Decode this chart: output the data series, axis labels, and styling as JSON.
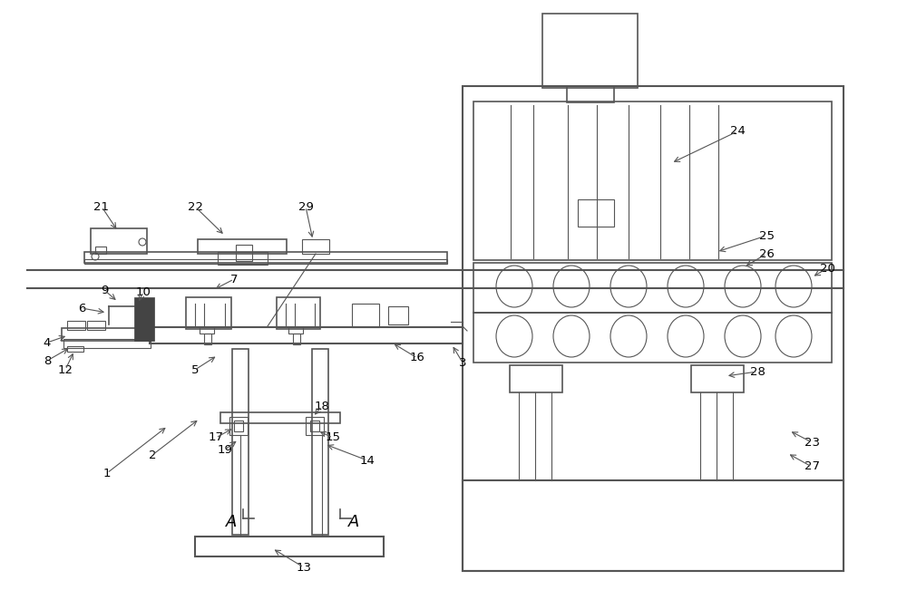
{
  "bg_color": "#ffffff",
  "lc": "#555555",
  "fig_width": 10.0,
  "fig_height": 6.51,
  "dark_fill": "#444444"
}
